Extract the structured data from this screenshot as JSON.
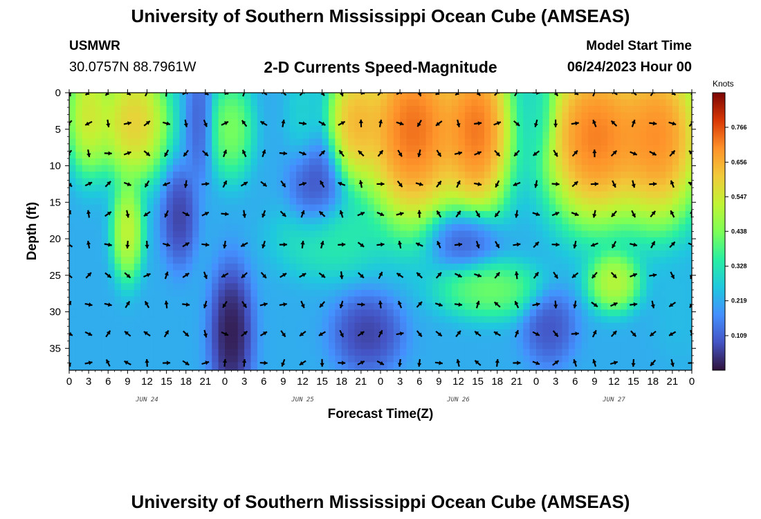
{
  "header": {
    "title": "University of Southern Mississippi Ocean Cube (AMSEAS)",
    "station": "USMWR",
    "coords": "30.0757N  88.7961W",
    "subtitle": "2-D Currents Speed-Magnitude",
    "model_start_label": "Model Start Time",
    "model_start_value": "06/24/2023 Hour 00"
  },
  "footer": {
    "title": "University of Southern Mississippi Ocean Cube (AMSEAS)"
  },
  "chart_data": {
    "type": "heatmap",
    "title": "2-D Currents Speed-Magnitude",
    "xlabel": "Forecast Time(Z)",
    "ylabel": "Depth (ft)",
    "x_range_hours": [
      0,
      96
    ],
    "y_range_ft": [
      0,
      38
    ],
    "y_inverted": true,
    "x_tick_labels": [
      "0",
      "3",
      "6",
      "9",
      "12",
      "15",
      "18",
      "21",
      "0",
      "3",
      "6",
      "9",
      "12",
      "15",
      "18",
      "21",
      "0",
      "3",
      "6",
      "9",
      "12",
      "15",
      "18",
      "21",
      "0",
      "3",
      "6",
      "9",
      "12",
      "15",
      "18",
      "21",
      "0"
    ],
    "y_ticks": [
      0,
      5,
      10,
      15,
      20,
      25,
      30,
      35
    ],
    "day_labels": [
      {
        "hour": 12,
        "text": "JUN 24"
      },
      {
        "hour": 36,
        "text": "JUN 25"
      },
      {
        "hour": 60,
        "text": "JUN 26"
      },
      {
        "hour": 84,
        "text": "JUN 27"
      }
    ],
    "colorbar": {
      "unit": "Knots",
      "min": 0.0,
      "max": 0.875,
      "ticks": [
        "0.109",
        "0.219",
        "0.328",
        "0.438",
        "0.547",
        "0.656",
        "0.766"
      ]
    },
    "speed_blobs": [
      {
        "hour": 3,
        "depth": 3,
        "value": 0.65,
        "sx": 2.5,
        "sy": 6
      },
      {
        "hour": 10,
        "depth": 4,
        "value": 0.72,
        "sx": 4,
        "sy": 6
      },
      {
        "hour": 9,
        "depth": 19,
        "value": 0.62,
        "sx": 1.8,
        "sy": 5
      },
      {
        "hour": 17,
        "depth": 17,
        "value": 0.02,
        "sx": 2,
        "sy": 5
      },
      {
        "hour": 20,
        "depth": 4,
        "value": 0.08,
        "sx": 1.5,
        "sy": 6
      },
      {
        "hour": 25,
        "depth": 5,
        "value": 0.5,
        "sx": 2.5,
        "sy": 5
      },
      {
        "hour": 25,
        "depth": 33,
        "value": -0.05,
        "sx": 2.5,
        "sy": 7
      },
      {
        "hour": 36,
        "depth": 3,
        "value": 0.3,
        "sx": 2,
        "sy": 5
      },
      {
        "hour": 38,
        "depth": 13,
        "value": 0.05,
        "sx": 3,
        "sy": 5
      },
      {
        "hour": 40,
        "depth": 20,
        "value": 0.38,
        "sx": 6,
        "sy": 4
      },
      {
        "hour": 44,
        "depth": 4,
        "value": 0.75,
        "sx": 3,
        "sy": 6
      },
      {
        "hour": 46,
        "depth": 33,
        "value": 0.02,
        "sx": 4,
        "sy": 4
      },
      {
        "hour": 53,
        "depth": 5,
        "value": 0.9,
        "sx": 6,
        "sy": 10
      },
      {
        "hour": 61,
        "depth": 20,
        "value": 0.05,
        "sx": 4,
        "sy": 3
      },
      {
        "hour": 63,
        "depth": 5,
        "value": 0.88,
        "sx": 4,
        "sy": 9
      },
      {
        "hour": 65,
        "depth": 27,
        "value": 0.48,
        "sx": 6,
        "sy": 3
      },
      {
        "hour": 72,
        "depth": 3,
        "value": 0.3,
        "sx": 2,
        "sy": 5
      },
      {
        "hour": 74,
        "depth": 32,
        "value": 0.05,
        "sx": 3,
        "sy": 4
      },
      {
        "hour": 81,
        "depth": 6,
        "value": 0.88,
        "sx": 6,
        "sy": 9
      },
      {
        "hour": 84,
        "depth": 26,
        "value": 0.6,
        "sx": 3,
        "sy": 3
      },
      {
        "hour": 91,
        "depth": 6,
        "value": 0.85,
        "sx": 5,
        "sy": 9
      },
      {
        "hour": 94,
        "depth": 30,
        "value": 0.25,
        "sx": 3,
        "sy": 5
      }
    ],
    "background_value": 0.22,
    "arrow_hours_step": 3,
    "arrow_depths": [
      0,
      4.2,
      8.3,
      12.5,
      16.6,
      20.8,
      25,
      29,
      33,
      37
    ]
  }
}
